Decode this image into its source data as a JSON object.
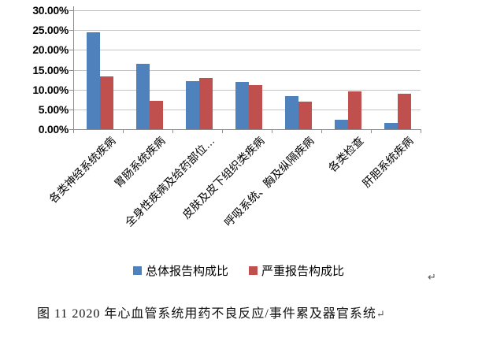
{
  "chart_data": {
    "type": "bar",
    "title": "",
    "xlabel": "",
    "ylabel": "",
    "categories": [
      "各类神经系统疾病",
      "胃肠系统疾病",
      "全身性疾病及给药部位…",
      "皮肤及皮下组织类疾病",
      "呼吸系统、胸及纵隔疾病",
      "各类检查",
      "肝胆系统疾病"
    ],
    "series": [
      {
        "name": "总体报告构成比",
        "color": "#4F81BD",
        "values": [
          24.4,
          16.4,
          12.2,
          11.9,
          8.3,
          2.3,
          1.5
        ]
      },
      {
        "name": "严重报告构成比",
        "color": "#C0504D",
        "values": [
          13.4,
          7.1,
          13.0,
          11.1,
          7.0,
          9.5,
          8.9
        ]
      }
    ],
    "ylim": [
      0,
      30
    ],
    "y_tick_step": 5,
    "y_tick_labels": [
      "30.00%",
      "25.00%",
      "20.00%",
      "15.00%",
      "10.00%",
      "5.00%",
      "0.00%"
    ],
    "grid": true,
    "legend_position": "bottom"
  },
  "marks": {
    "paragraph_return": "↵"
  },
  "caption": {
    "label": "图 11  2020 年心血管系统用药不良反应/事件累及器官系统",
    "return_mark": "↵"
  },
  "colors": {
    "bar_blue": "#4F81BD",
    "bar_red": "#C0504D",
    "gridline": "#c4c4c4",
    "axis": "#8c8c8c",
    "text": "#000000",
    "return_mark": "#595959"
  }
}
